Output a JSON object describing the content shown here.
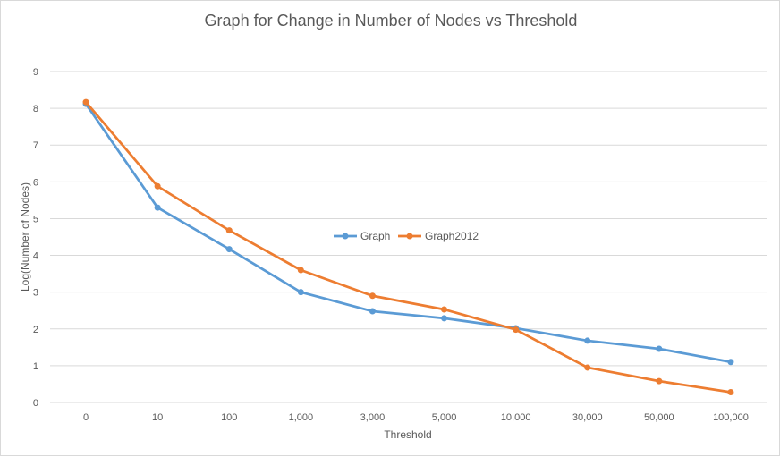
{
  "chart_data": {
    "type": "line",
    "title": "Graph for Change in  Number of Nodes vs Threshold",
    "xlabel": "Threshold",
    "ylabel": "Log(Number  of Nodes)",
    "categories": [
      "0",
      "10",
      "100",
      "1,000",
      "3,000",
      "5,000",
      "10,000",
      "30,000",
      "50,000",
      "100,000"
    ],
    "ylim": [
      0,
      9
    ],
    "yticks": [
      "0",
      "1",
      "2",
      "3",
      "4",
      "5",
      "6",
      "7",
      "8",
      "9"
    ],
    "grid": true,
    "legend_position": "center",
    "series": [
      {
        "name": "Graph",
        "color": "#5b9bd5",
        "values": [
          8.12,
          5.3,
          4.17,
          3.0,
          2.48,
          2.29,
          2.02,
          1.68,
          1.46,
          1.1
        ]
      },
      {
        "name": "Graph2012",
        "color": "#ed7d31",
        "values": [
          8.17,
          5.88,
          4.68,
          3.6,
          2.9,
          2.53,
          1.98,
          0.95,
          0.58,
          0.28
        ]
      }
    ]
  }
}
